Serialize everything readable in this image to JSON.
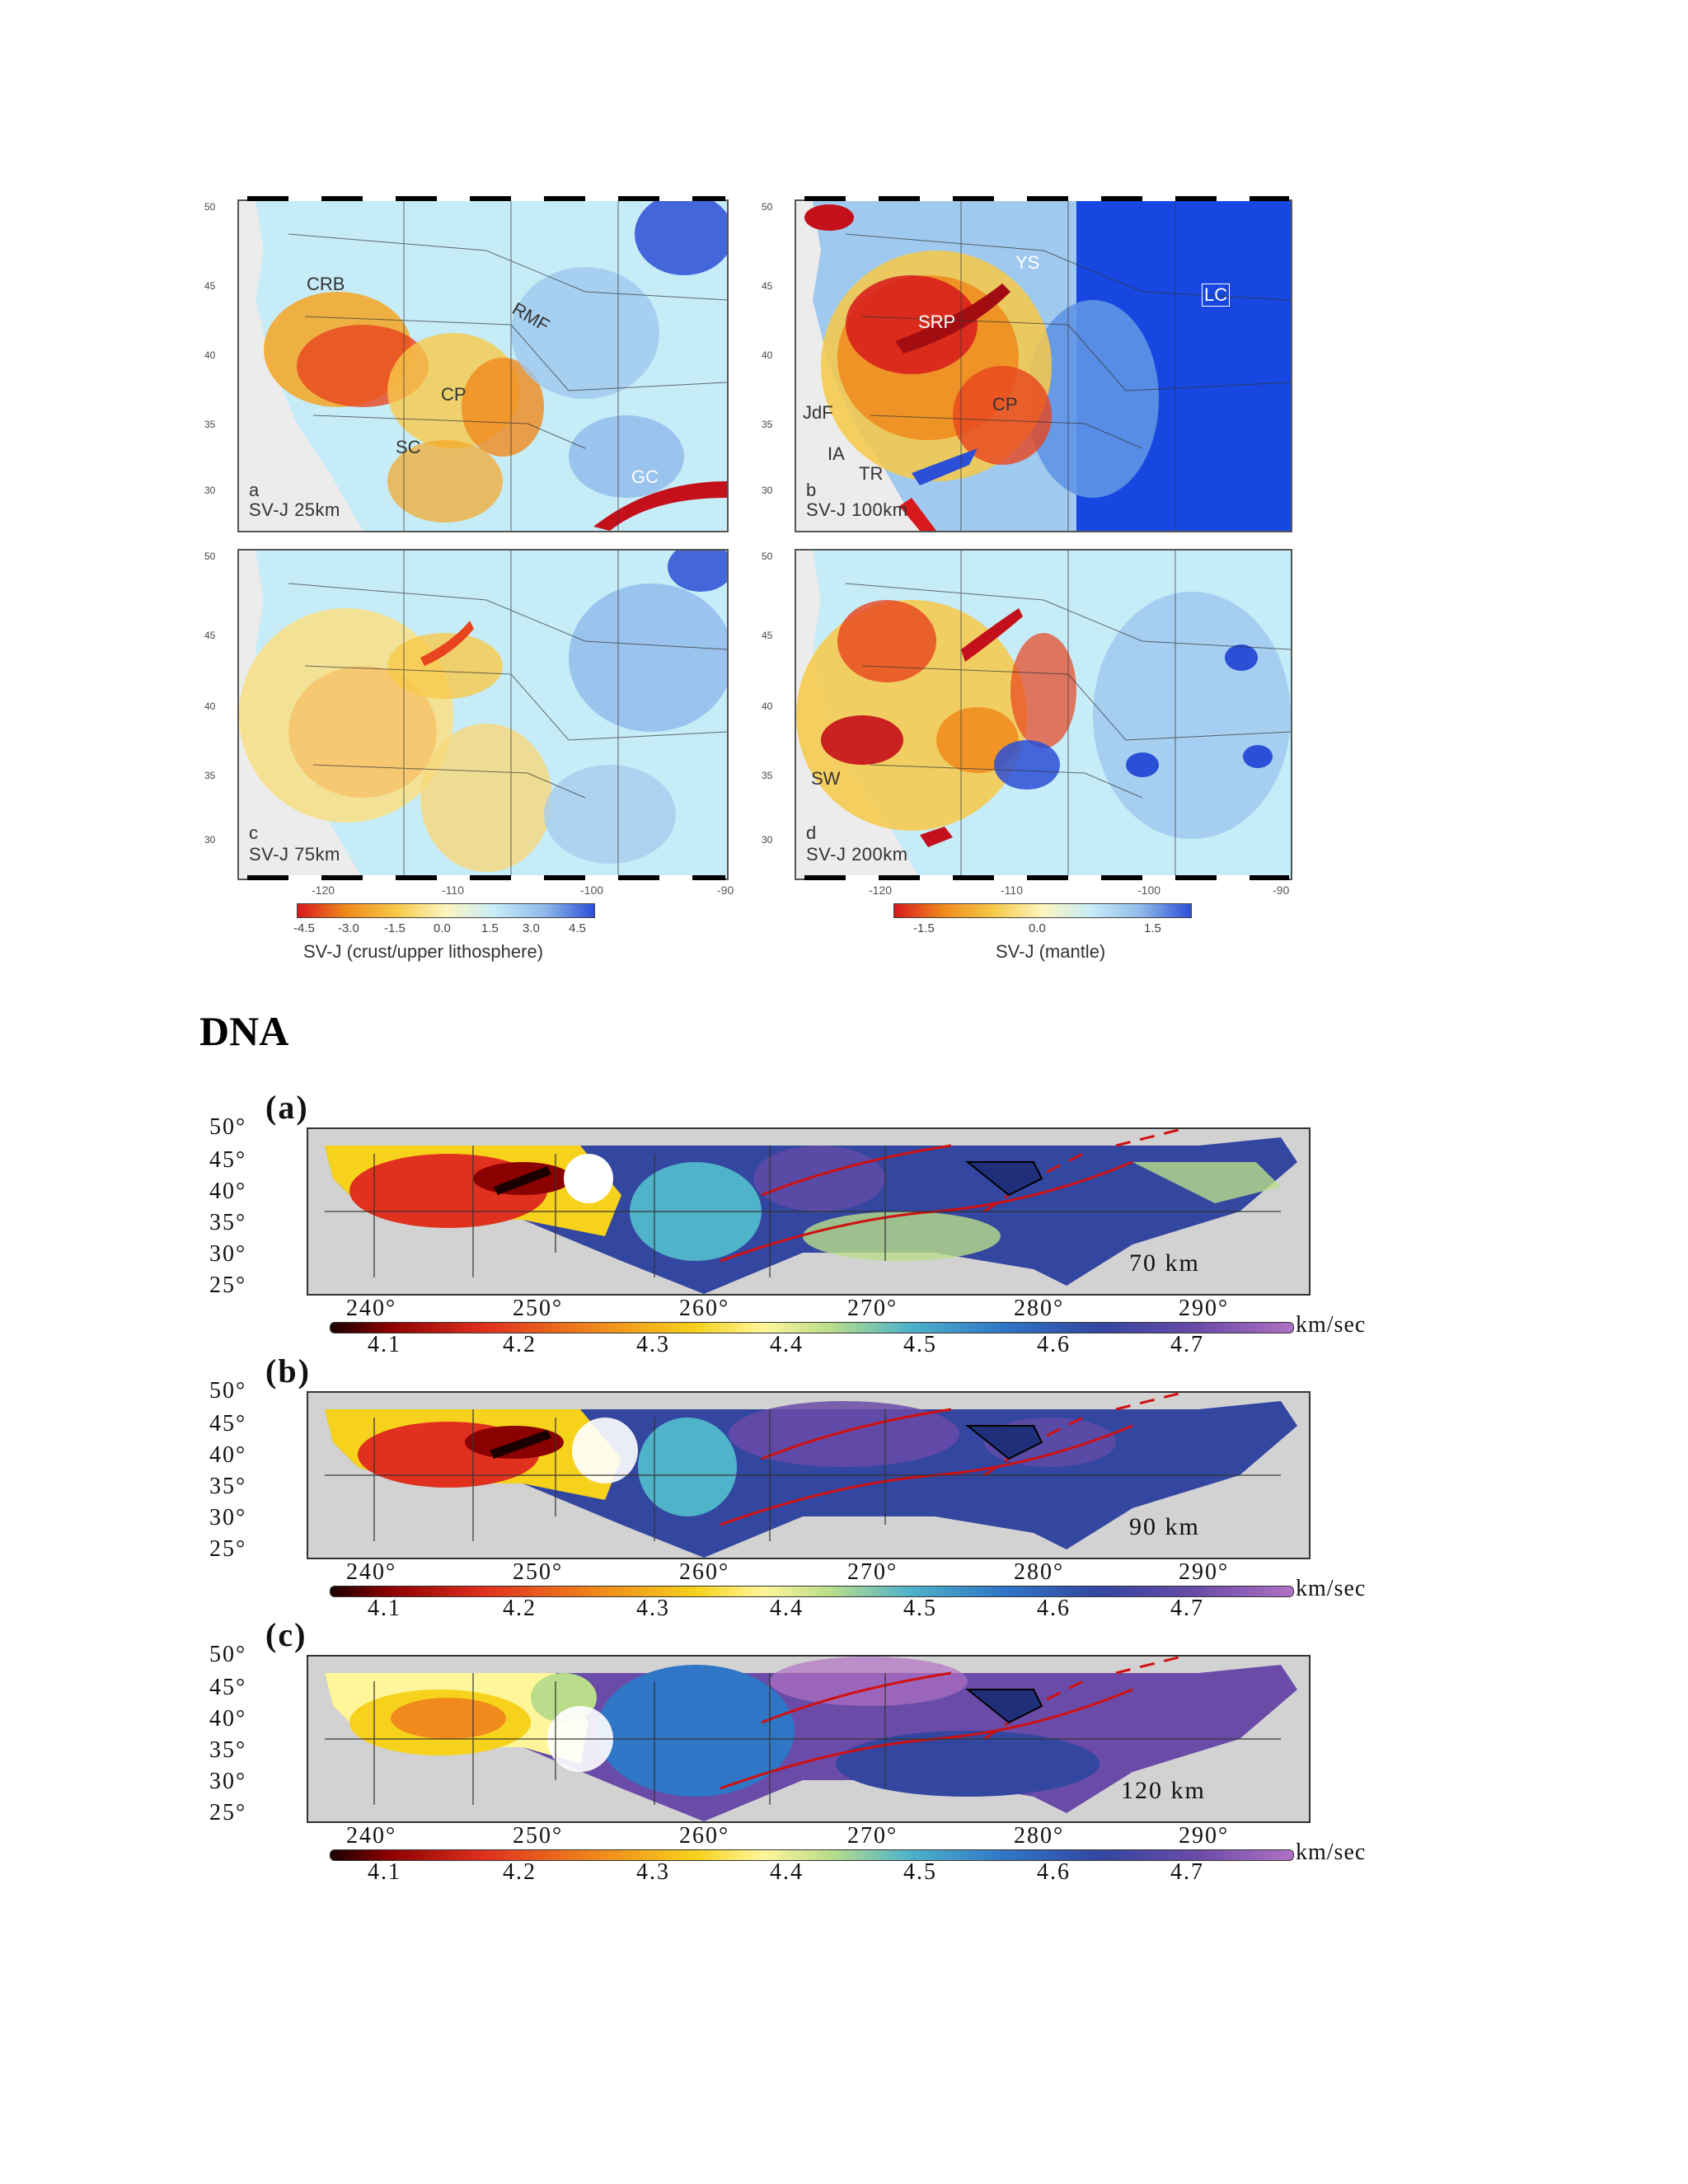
{
  "top_figure": {
    "panels": [
      {
        "letter": "a",
        "title": "SV-J 25km",
        "regions": [
          "CRB",
          "RMF",
          "CP",
          "SC",
          "GC"
        ]
      },
      {
        "letter": "b",
        "title": "SV-J 100km",
        "regions": [
          "YS",
          "LC",
          "SRP",
          "JdF",
          "CP",
          "IA",
          "TR"
        ]
      },
      {
        "letter": "c",
        "title": "SV-J 75km",
        "regions": []
      },
      {
        "letter": "d",
        "title": "SV-J 200km",
        "regions": [
          "SW"
        ]
      }
    ],
    "lat_ticks": [
      "50",
      "45",
      "40",
      "35",
      "30"
    ],
    "lon_ticks": [
      "-120",
      "-110",
      "-100",
      "-90"
    ],
    "colorbar_left": {
      "ticks": [
        "-4.5",
        "-3.0",
        "-1.5",
        "0.0",
        "1.5",
        "3.0",
        "4.5"
      ],
      "title": "SV-J (crust/upper lithosphere)"
    },
    "colorbar_right": {
      "ticks": [
        "-1.5",
        "0.0",
        "1.5"
      ],
      "title": "SV-J (mantle)"
    }
  },
  "heading": "DNA",
  "dna_figure": {
    "panels": [
      {
        "label": "(a)",
        "depth": "70 km"
      },
      {
        "label": "(b)",
        "depth": "90 km"
      },
      {
        "label": "(c)",
        "depth": "120 km"
      }
    ],
    "lat_ticks": [
      "50°",
      "45°",
      "40°",
      "35°",
      "30°",
      "25°"
    ],
    "lon_ticks": [
      "240°",
      "250°",
      "260°",
      "270°",
      "280°",
      "290°"
    ],
    "colorbar_ticks": [
      "4.1",
      "4.2",
      "4.3",
      "4.4",
      "4.5",
      "4.6",
      "4.7"
    ],
    "unit": "km/sec"
  },
  "colors": {
    "slow": "#d7191c",
    "fast": "#2b4fd6",
    "neutral": "#f7f7b0"
  }
}
